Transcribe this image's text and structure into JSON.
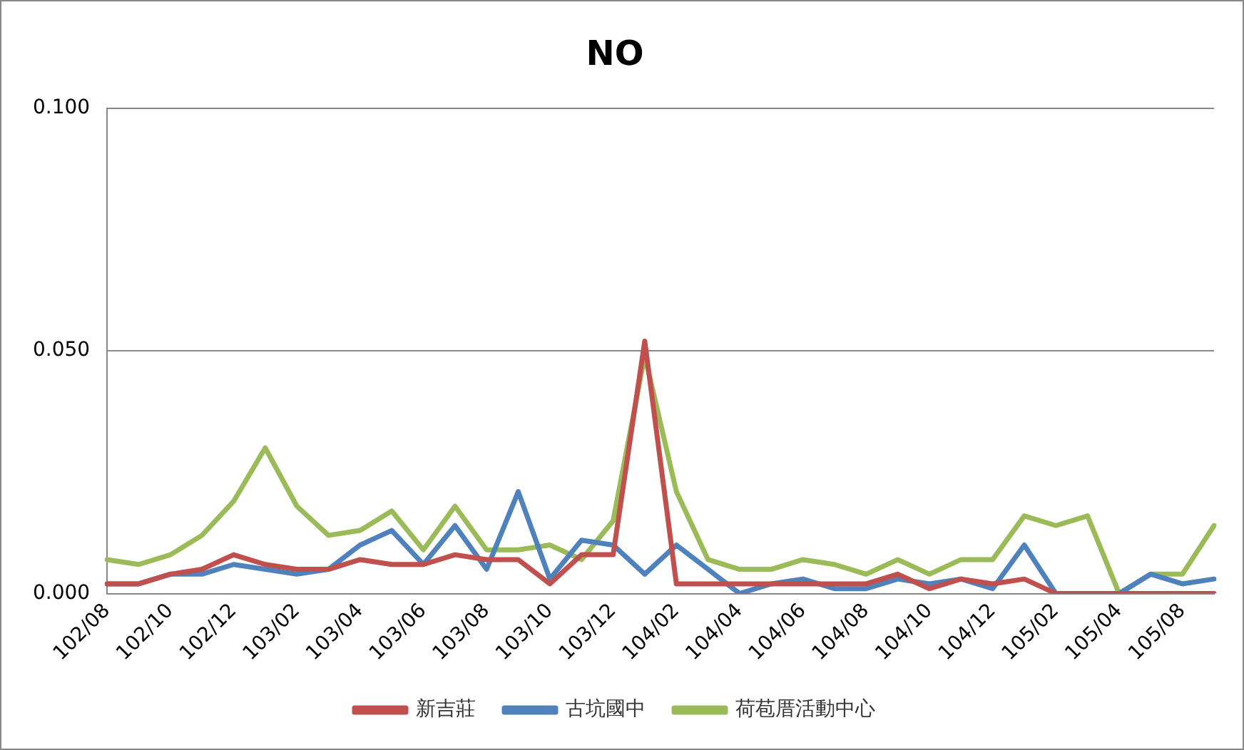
{
  "chart_data": {
    "type": "line",
    "title": "NO",
    "categories": [
      "102/08",
      null,
      "102/10",
      null,
      "102/12",
      null,
      "103/02",
      null,
      "103/04",
      null,
      "103/06",
      null,
      "103/08",
      null,
      "103/10",
      null,
      "103/12",
      null,
      "104/02",
      null,
      "104/04",
      null,
      "104/06",
      null,
      "104/08",
      null,
      "104/10",
      null,
      "104/12",
      null,
      "105/02",
      null,
      "105/04",
      null,
      "105/08",
      null
    ],
    "series": [
      {
        "name": "新吉莊",
        "color": "#c0504d",
        "values": [
          0.002,
          0.002,
          0.004,
          0.005,
          0.008,
          0.006,
          0.005,
          0.005,
          0.007,
          0.006,
          0.006,
          0.008,
          0.007,
          0.007,
          0.002,
          0.008,
          0.008,
          0.052,
          0.002,
          0.002,
          0.002,
          0.002,
          0.002,
          0.002,
          0.002,
          0.004,
          0.001,
          0.003,
          0.002,
          0.003,
          0,
          0,
          0,
          0,
          0,
          0
        ]
      },
      {
        "name": "古坑國中",
        "color": "#4f81bd",
        "values": [
          0.002,
          0.002,
          0.004,
          0.004,
          0.006,
          0.005,
          0.004,
          0.005,
          0.01,
          0.013,
          0.006,
          0.014,
          0.005,
          0.021,
          0.003,
          0.011,
          0.01,
          0.004,
          0.01,
          0.005,
          0.0,
          0.002,
          0.003,
          0.001,
          0.001,
          0.003,
          0.002,
          0.003,
          0.001,
          0.01,
          0,
          0,
          0,
          0.004,
          0.002,
          0.003
        ]
      },
      {
        "name": "荷苞厝活動中心",
        "color": "#9bbb59",
        "values": [
          0.007,
          0.006,
          0.008,
          0.012,
          0.019,
          0.03,
          0.018,
          0.012,
          0.013,
          0.017,
          0.009,
          0.018,
          0.009,
          0.009,
          0.01,
          0.007,
          0.015,
          0.049,
          0.021,
          0.007,
          0.005,
          0.005,
          0.007,
          0.006,
          0.004,
          0.007,
          0.004,
          0.007,
          0.007,
          0.016,
          0.014,
          0.016,
          0,
          0.004,
          0.004,
          0.014
        ]
      }
    ],
    "ylim": [
      0,
      0.1
    ],
    "yticks": [
      {
        "value": 0,
        "label": "0.000"
      },
      {
        "value": 0.05,
        "label": "0.050"
      },
      {
        "value": 0.1,
        "label": "0.100"
      }
    ],
    "grid": "y",
    "legend": "bottom",
    "marker": "none",
    "line_style": "solid"
  }
}
